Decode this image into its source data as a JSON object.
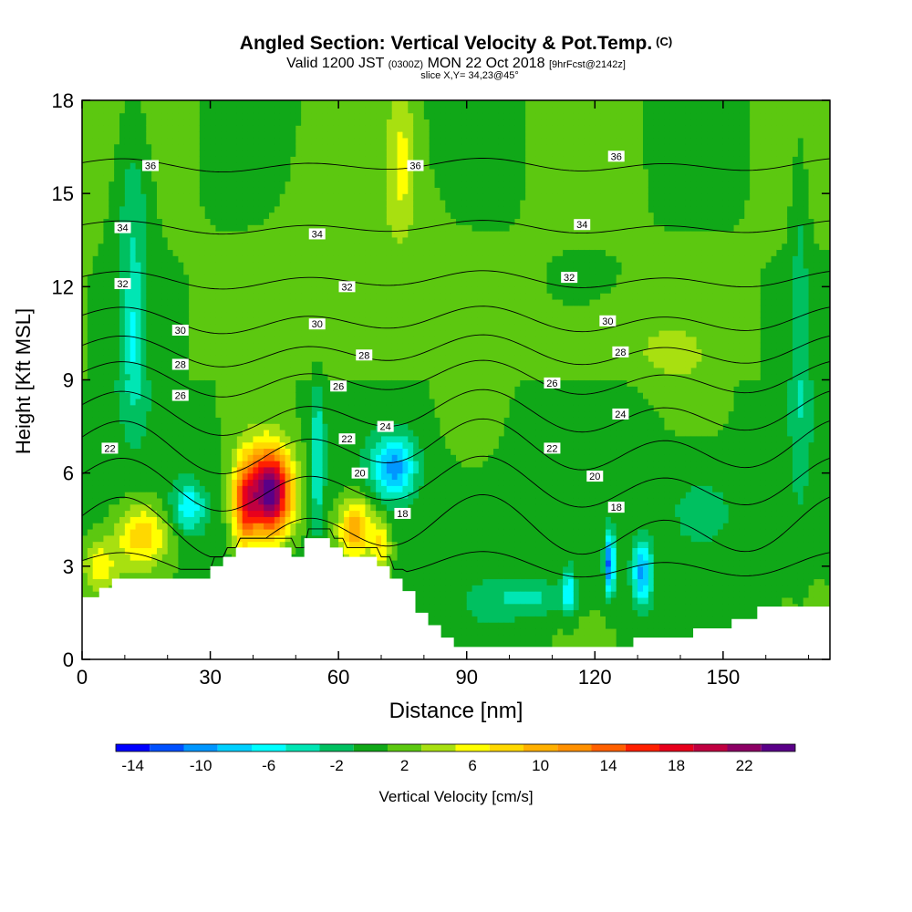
{
  "title": {
    "main": "Angled Section: Vertical Velocity & Pot.Temp.",
    "units": "(C)",
    "valid_prefix": "Valid 1200 JST",
    "valid_z": "(0300Z)",
    "valid_date": "MON 22 Oct 2018",
    "forecast": "[9hrFcst@2142z]",
    "slice": "slice X,Y= 34,23@45°"
  },
  "chart_data": {
    "type": "heatmap",
    "xlabel": "Distance [nm]",
    "ylabel": "Height [Kft MSL]",
    "xlim": [
      0,
      175
    ],
    "ylim": [
      0,
      18
    ],
    "xticks": [
      0,
      30,
      60,
      90,
      120,
      150
    ],
    "yticks": [
      0,
      3,
      6,
      9,
      12,
      15,
      18
    ],
    "colorbar": {
      "label": "Vertical Velocity [cm/s]",
      "ticks": [
        -14,
        -10,
        -6,
        -2,
        2,
        6,
        10,
        14,
        18,
        22
      ],
      "bins": [
        {
          "min": -15,
          "max": -13,
          "color": "#0000ff"
        },
        {
          "min": -13,
          "max": -11,
          "color": "#0050ff"
        },
        {
          "min": -11,
          "max": -9,
          "color": "#0096ff"
        },
        {
          "min": -9,
          "max": -7,
          "color": "#00d0ff"
        },
        {
          "min": -7,
          "max": -5,
          "color": "#00ffff"
        },
        {
          "min": -5,
          "max": -3,
          "color": "#00e6b4"
        },
        {
          "min": -3,
          "max": -1,
          "color": "#00c060"
        },
        {
          "min": -1,
          "max": 1,
          "color": "#10a818"
        },
        {
          "min": 1,
          "max": 3,
          "color": "#5cc810"
        },
        {
          "min": 3,
          "max": 5,
          "color": "#a8e010"
        },
        {
          "min": 5,
          "max": 7,
          "color": "#ffff00"
        },
        {
          "min": 7,
          "max": 9,
          "color": "#ffd800"
        },
        {
          "min": 9,
          "max": 11,
          "color": "#ffb000"
        },
        {
          "min": 11,
          "max": 13,
          "color": "#ff9000"
        },
        {
          "min": 13,
          "max": 15,
          "color": "#ff6000"
        },
        {
          "min": 15,
          "max": 17,
          "color": "#ff2000"
        },
        {
          "min": 17,
          "max": 19,
          "color": "#e8001c"
        },
        {
          "min": 19,
          "max": 21,
          "color": "#c00040"
        },
        {
          "min": 21,
          "max": 23,
          "color": "#8c0064"
        },
        {
          "min": 23,
          "max": 25,
          "color": "#5a0088"
        }
      ]
    },
    "terrain": [
      [
        0,
        2
      ],
      [
        4,
        2
      ],
      [
        4,
        2.3
      ],
      [
        7,
        2.3
      ],
      [
        7,
        2.6
      ],
      [
        30,
        2.6
      ],
      [
        30,
        3
      ],
      [
        33,
        3
      ],
      [
        33,
        3.3
      ],
      [
        36,
        3.3
      ],
      [
        36,
        3.6
      ],
      [
        49,
        3.6
      ],
      [
        49,
        3.3
      ],
      [
        52,
        3.3
      ],
      [
        52,
        3.9
      ],
      [
        58,
        3.9
      ],
      [
        58,
        3.6
      ],
      [
        61,
        3.6
      ],
      [
        61,
        3.3
      ],
      [
        69,
        3.3
      ],
      [
        69,
        3
      ],
      [
        72,
        3
      ],
      [
        72,
        2.6
      ],
      [
        75,
        2.6
      ],
      [
        75,
        2.2
      ],
      [
        78,
        2.2
      ],
      [
        78,
        1.5
      ],
      [
        81,
        1.5
      ],
      [
        81,
        1.1
      ],
      [
        84,
        1.1
      ],
      [
        84,
        0.7
      ],
      [
        87,
        0.7
      ],
      [
        87,
        0.4
      ],
      [
        129,
        0.4
      ],
      [
        129,
        0.7
      ],
      [
        143,
        0.7
      ],
      [
        143,
        1
      ],
      [
        152,
        1
      ],
      [
        152,
        1.3
      ],
      [
        158,
        1.3
      ],
      [
        158,
        1.7
      ],
      [
        175,
        1.7
      ]
    ],
    "features": [
      {
        "x": 44,
        "z": 5.4,
        "sx": 5,
        "sz": 1.4,
        "value": 24
      },
      {
        "x": 38,
        "z": 5.0,
        "sx": 3,
        "sz": 1.5,
        "value": 12
      },
      {
        "x": 14,
        "z": 4.0,
        "sx": 6,
        "sz": 1.0,
        "value": 8
      },
      {
        "x": 4,
        "z": 3.0,
        "sx": 4,
        "sz": 0.8,
        "value": 6
      },
      {
        "x": 64,
        "z": 4.2,
        "sx": 4,
        "sz": 1.0,
        "value": 10
      },
      {
        "x": 70,
        "z": 3.7,
        "sx": 2,
        "sz": 0.8,
        "value": 6
      },
      {
        "x": 25,
        "z": 4.9,
        "sx": 4,
        "sz": 0.8,
        "value": -7
      },
      {
        "x": 55,
        "z": 6.5,
        "sx": 1.6,
        "sz": 2.2,
        "value": -6
      },
      {
        "x": 73,
        "z": 6.2,
        "sx": 5,
        "sz": 1.0,
        "value": -10
      },
      {
        "x": 123.5,
        "z": 3.1,
        "sx": 1.2,
        "sz": 1.0,
        "value": -13
      },
      {
        "x": 131,
        "z": 2.8,
        "sx": 2.2,
        "sz": 1.0,
        "value": -10
      },
      {
        "x": 114,
        "z": 2.2,
        "sx": 1.5,
        "sz": 0.8,
        "value": -7
      },
      {
        "x": 105,
        "z": 2.0,
        "sx": 10,
        "sz": 0.6,
        "value": -4
      },
      {
        "x": 168,
        "z": 11,
        "sx": 2,
        "sz": 6,
        "value": -3
      },
      {
        "x": 12,
        "z": 14,
        "sx": 4,
        "sz": 4,
        "value": -4
      },
      {
        "x": 12,
        "z": 10,
        "sx": 2,
        "sz": 2,
        "value": -4
      },
      {
        "x": 65,
        "z": 12,
        "sx": 15,
        "sz": 4,
        "value": 2
      },
      {
        "x": 75,
        "z": 16,
        "sx": 3,
        "sz": 2,
        "value": 4
      },
      {
        "x": 125,
        "z": 10,
        "sx": 20,
        "sz": 1.5,
        "value": 2
      },
      {
        "x": 145,
        "z": 5,
        "sx": 10,
        "sz": 1.5,
        "value": -2
      }
    ],
    "isentropes": [
      {
        "label": "16",
        "z0": 3.0,
        "amp": 0.3
      },
      {
        "label": "18",
        "z0": 4.2,
        "amp": 0.7
      },
      {
        "label": "20",
        "z0": 5.6,
        "amp": 0.6
      },
      {
        "label": "22",
        "z0": 6.8,
        "amp": 0.6
      },
      {
        "label": "24",
        "z0": 7.9,
        "amp": 0.5
      },
      {
        "label": "26",
        "z0": 9.0,
        "amp": 0.4
      },
      {
        "label": "28",
        "z0": 9.9,
        "amp": 0.35
      },
      {
        "label": "30",
        "z0": 10.9,
        "amp": 0.3
      },
      {
        "label": "32",
        "z0": 12.2,
        "amp": 0.2
      },
      {
        "label": "34",
        "z0": 13.9,
        "amp": 0.15
      },
      {
        "label": "36",
        "z0": 15.9,
        "amp": 0.15
      }
    ],
    "contour_labels": [
      {
        "text": "36",
        "x": 16,
        "y": 15.9
      },
      {
        "text": "36",
        "x": 78,
        "y": 15.9
      },
      {
        "text": "36",
        "x": 125,
        "y": 16.2
      },
      {
        "text": "34",
        "x": 9.5,
        "y": 13.9
      },
      {
        "text": "34",
        "x": 55,
        "y": 13.7
      },
      {
        "text": "34",
        "x": 117,
        "y": 14.0
      },
      {
        "text": "32",
        "x": 9.5,
        "y": 12.1
      },
      {
        "text": "32",
        "x": 62,
        "y": 12.0
      },
      {
        "text": "32",
        "x": 114,
        "y": 12.3
      },
      {
        "text": "30",
        "x": 23,
        "y": 10.6
      },
      {
        "text": "30",
        "x": 55,
        "y": 10.8
      },
      {
        "text": "30",
        "x": 123,
        "y": 10.9
      },
      {
        "text": "28",
        "x": 23,
        "y": 9.5
      },
      {
        "text": "28",
        "x": 66,
        "y": 9.8
      },
      {
        "text": "28",
        "x": 126,
        "y": 9.9
      },
      {
        "text": "26",
        "x": 23,
        "y": 8.5
      },
      {
        "text": "26",
        "x": 60,
        "y": 8.8
      },
      {
        "text": "26",
        "x": 110,
        "y": 8.9
      },
      {
        "text": "24",
        "x": 71,
        "y": 7.5
      },
      {
        "text": "24",
        "x": 126,
        "y": 7.9
      },
      {
        "text": "22",
        "x": 6.5,
        "y": 6.8
      },
      {
        "text": "22",
        "x": 62,
        "y": 7.1
      },
      {
        "text": "22",
        "x": 110,
        "y": 6.8
      },
      {
        "text": "20",
        "x": 65,
        "y": 6.0
      },
      {
        "text": "20",
        "x": 120,
        "y": 5.9
      },
      {
        "text": "18",
        "x": 75,
        "y": 4.7
      },
      {
        "text": "18",
        "x": 125,
        "y": 4.9
      }
    ]
  }
}
